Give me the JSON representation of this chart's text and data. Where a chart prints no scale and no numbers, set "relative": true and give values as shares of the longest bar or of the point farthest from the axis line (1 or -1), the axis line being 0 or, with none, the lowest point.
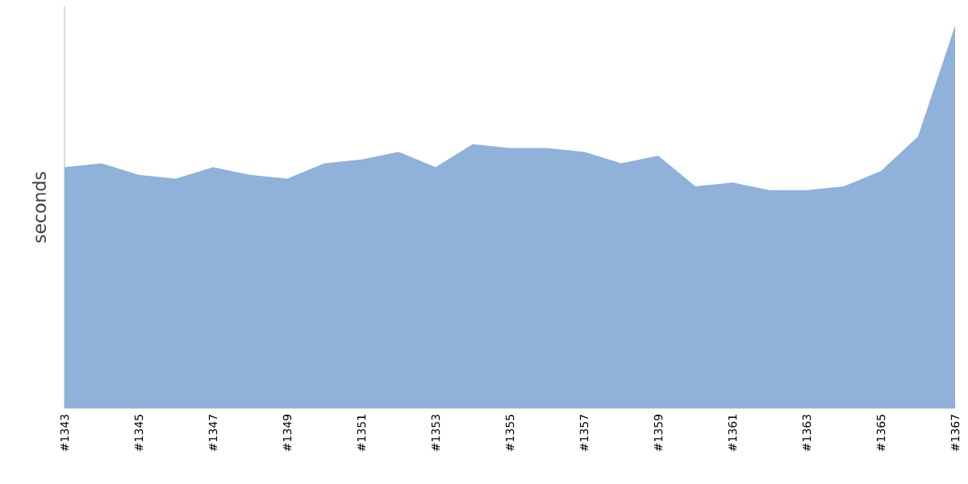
{
  "chart_data": {
    "type": "area",
    "ylabel": "seconds",
    "relative": true,
    "grid": false,
    "categories": [
      "#1343",
      null,
      "#1345",
      null,
      "#1347",
      null,
      "#1349",
      null,
      "#1351",
      null,
      "#1353",
      null,
      "#1355",
      null,
      "#1357",
      null,
      "#1359",
      null,
      "#1361",
      null,
      "#1363",
      null,
      "#1365",
      null,
      "#1367"
    ],
    "series": [
      {
        "color": "#8fb1da",
        "values": [
          0.63,
          0.64,
          0.61,
          0.6,
          0.63,
          0.61,
          0.6,
          0.64,
          0.65,
          0.67,
          0.63,
          0.69,
          0.68,
          0.68,
          0.67,
          0.64,
          0.66,
          0.58,
          0.59,
          0.57,
          0.57,
          0.58,
          0.62,
          0.71,
          1
        ]
      }
    ]
  }
}
